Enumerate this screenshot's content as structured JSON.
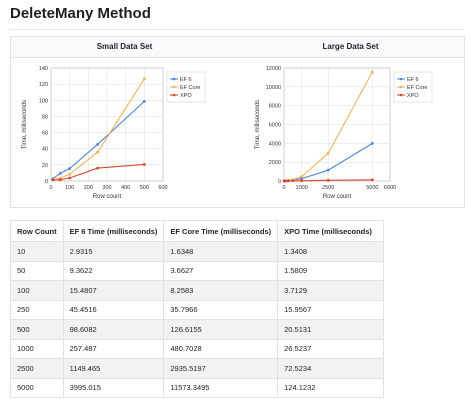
{
  "page": {
    "title": "DeleteMany Method"
  },
  "colors": {
    "ef6": "#4a86e8",
    "efcore": "#f4b350",
    "xpo": "#d9472b"
  },
  "chart_data": [
    {
      "type": "line",
      "title": "Small Data Set",
      "xlabel": "Row count",
      "ylabel": "Time, milliseconds",
      "x": [
        10,
        50,
        100,
        250,
        500
      ],
      "xlim": [
        0,
        600
      ],
      "ylim": [
        0,
        140
      ],
      "xticks": [
        "0",
        "100",
        "200",
        "300",
        "400",
        "500",
        "600"
      ],
      "yticks": [
        "0",
        "20",
        "40",
        "60",
        "80",
        "100",
        "120",
        "140"
      ],
      "xtick_values": [
        0,
        100,
        200,
        300,
        400,
        500,
        600
      ],
      "ytick_values": [
        0,
        20,
        40,
        60,
        80,
        100,
        120,
        140
      ],
      "legend_position": "top-right",
      "grid": true,
      "series": [
        {
          "name": "EF 6",
          "values": [
            2.9315,
            9.3622,
            15.4807,
            45.4516,
            98.6082
          ]
        },
        {
          "name": "EF Core",
          "values": [
            1.6348,
            3.6627,
            8.2583,
            35.7966,
            126.6155
          ]
        },
        {
          "name": "XPO",
          "values": [
            1.3408,
            1.5809,
            3.7129,
            15.9567,
            20.5131
          ]
        }
      ]
    },
    {
      "type": "line",
      "title": "Large Data Set",
      "xlabel": "Row count",
      "ylabel": "Time, milliseconds",
      "x": [
        10,
        50,
        100,
        250,
        500,
        1000,
        2500,
        5000
      ],
      "xlim": [
        0,
        6000
      ],
      "ylim": [
        0,
        12000
      ],
      "xticks": [
        "0",
        "1000",
        "2500",
        "5000",
        "6000"
      ],
      "yticks": [
        "0",
        "2000",
        "4000",
        "6000",
        "8000",
        "10000",
        "12000"
      ],
      "xtick_values": [
        0,
        1000,
        2500,
        5000,
        6000
      ],
      "ytick_values": [
        0,
        2000,
        4000,
        6000,
        8000,
        10000,
        12000
      ],
      "legend_position": "top-right",
      "grid": true,
      "series": [
        {
          "name": "EF 6",
          "values": [
            2.9315,
            9.3622,
            15.4807,
            45.4516,
            98.6082,
            257.487,
            1149.465,
            3995.015
          ]
        },
        {
          "name": "EF Core",
          "values": [
            1.6348,
            3.6627,
            8.2583,
            35.7966,
            126.6155,
            480.7028,
            2935.5197,
            11573.3495
          ]
        },
        {
          "name": "XPO",
          "values": [
            1.3408,
            1.5809,
            3.7129,
            15.9567,
            20.5131,
            26.5237,
            72.5234,
            124.1232
          ]
        }
      ]
    }
  ],
  "table": {
    "headers": [
      "Row Count",
      "EF 6 Time (milliseconds)",
      "EF Core Time (milliseconds)",
      "XPO Time (milliseconds)"
    ],
    "rows": [
      [
        "10",
        "2.9315",
        "1.6348",
        "1.3408"
      ],
      [
        "50",
        "9.3622",
        "3.6627",
        "1.5809"
      ],
      [
        "100",
        "15.4807",
        "8.2583",
        "3.7129"
      ],
      [
        "250",
        "45.4516",
        "35.7966",
        "15.9567"
      ],
      [
        "500",
        "98.6082",
        "126.6155",
        "20.5131"
      ],
      [
        "1000",
        "257.487",
        "480.7028",
        "26.5237"
      ],
      [
        "2500",
        "1149.465",
        "2935.5197",
        "72.5234"
      ],
      [
        "5000",
        "3995.015",
        "11573.3495",
        "124.1232"
      ]
    ]
  }
}
